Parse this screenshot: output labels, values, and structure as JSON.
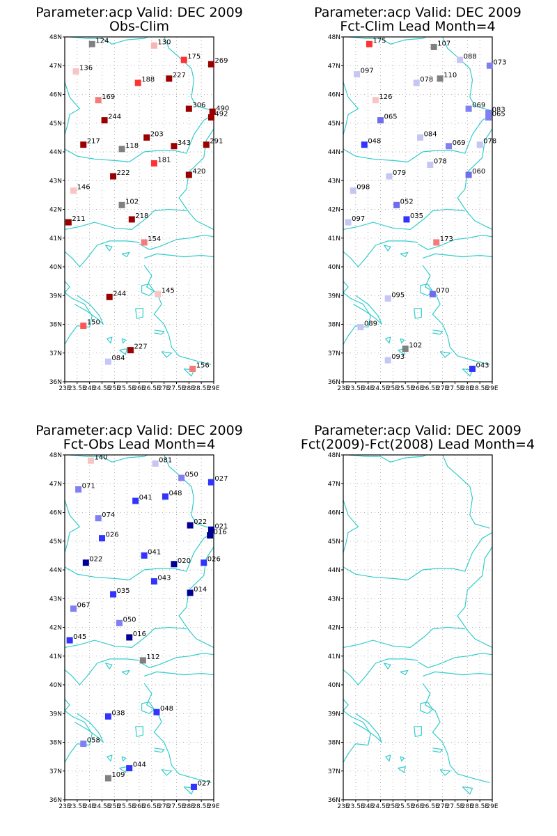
{
  "figure": {
    "panels": [
      {
        "id": "obs-clim",
        "title1": "Parameter:acp Valid: DEC 2009",
        "title2": "Obs-Clim"
      },
      {
        "id": "fct-clim",
        "title1": "Parameter:acp Valid: DEC 2009",
        "title2": "Fct-Clim Lead Month=4"
      },
      {
        "id": "fct-obs",
        "title1": "Parameter:acp Valid: DEC 2009",
        "title2": "Fct-Obs Lead Month=4"
      },
      {
        "id": "fct-diff",
        "title1": "Parameter:acp Valid: DEC 2009",
        "title2": "Fct(2009)-Fct(2008) Lead Month=4"
      }
    ]
  },
  "chart_data": {
    "type": "scatter",
    "x_ticks": [
      "23E",
      "23.5E",
      "24E",
      "24.5E",
      "25E",
      "25.5E",
      "26E",
      "26.5E",
      "27E",
      "27.5E",
      "28E",
      "28.5E",
      "29E"
    ],
    "y_ticks": [
      "36N",
      "37N",
      "38N",
      "39N",
      "40N",
      "41N",
      "42N",
      "43N",
      "44N",
      "45N",
      "46N",
      "47N",
      "48N"
    ],
    "xlim": [
      23,
      29
    ],
    "ylim": [
      36,
      48
    ],
    "grid": true,
    "coastline_color": "#33cccc",
    "panels": [
      {
        "name": "obs-clim",
        "points": [
          {
            "lon": 24.1,
            "lat": 47.75,
            "label": "124",
            "color": "#808080"
          },
          {
            "lon": 26.6,
            "lat": 47.7,
            "label": "130",
            "color": "#f9b4b4"
          },
          {
            "lon": 27.8,
            "lat": 47.2,
            "label": "175",
            "color": "#ff3333"
          },
          {
            "lon": 28.9,
            "lat": 47.05,
            "label": "269",
            "color": "#9b0000"
          },
          {
            "lon": 23.45,
            "lat": 46.8,
            "label": "136",
            "color": "#f9c4c4"
          },
          {
            "lon": 27.2,
            "lat": 46.55,
            "label": "227",
            "color": "#9b0000"
          },
          {
            "lon": 25.95,
            "lat": 46.4,
            "label": "188",
            "color": "#ff3333"
          },
          {
            "lon": 24.35,
            "lat": 45.8,
            "label": "169",
            "color": "#f37b7b"
          },
          {
            "lon": 28.0,
            "lat": 45.5,
            "label": "306",
            "color": "#9b0000"
          },
          {
            "lon": 28.95,
            "lat": 45.4,
            "label": "490",
            "color": "#9b0000"
          },
          {
            "lon": 28.9,
            "lat": 45.2,
            "label": "492",
            "color": "#9b0000"
          },
          {
            "lon": 24.6,
            "lat": 45.1,
            "label": "244",
            "color": "#9b0000"
          },
          {
            "lon": 26.3,
            "lat": 44.5,
            "label": "203",
            "color": "#9b0000"
          },
          {
            "lon": 23.75,
            "lat": 44.25,
            "label": "217",
            "color": "#9b0000"
          },
          {
            "lon": 25.3,
            "lat": 44.1,
            "label": "118",
            "color": "#808080"
          },
          {
            "lon": 27.4,
            "lat": 44.2,
            "label": "343",
            "color": "#9b0000"
          },
          {
            "lon": 28.7,
            "lat": 44.25,
            "label": "291",
            "color": "#9b0000"
          },
          {
            "lon": 26.6,
            "lat": 43.6,
            "label": "181",
            "color": "#ff3333"
          },
          {
            "lon": 28.0,
            "lat": 43.2,
            "label": "420",
            "color": "#9b0000"
          },
          {
            "lon": 24.95,
            "lat": 43.15,
            "label": "222",
            "color": "#9b0000"
          },
          {
            "lon": 23.35,
            "lat": 42.65,
            "label": "146",
            "color": "#f9c4c4"
          },
          {
            "lon": 25.3,
            "lat": 42.15,
            "label": "102",
            "color": "#808080"
          },
          {
            "lon": 25.7,
            "lat": 41.65,
            "label": "218",
            "color": "#9b0000"
          },
          {
            "lon": 23.15,
            "lat": 41.55,
            "label": "211",
            "color": "#9b0000"
          },
          {
            "lon": 26.2,
            "lat": 40.85,
            "label": "154",
            "color": "#f37b7b"
          },
          {
            "lon": 26.75,
            "lat": 39.05,
            "label": "145",
            "color": "#f9c4c4"
          },
          {
            "lon": 24.8,
            "lat": 38.95,
            "label": "244",
            "color": "#9b0000"
          },
          {
            "lon": 23.75,
            "lat": 37.95,
            "label": "150",
            "color": "#ff5555"
          },
          {
            "lon": 25.65,
            "lat": 37.1,
            "label": "227",
            "color": "#9b0000"
          },
          {
            "lon": 24.75,
            "lat": 36.7,
            "label": "084",
            "color": "#c6c6f5"
          },
          {
            "lon": 28.15,
            "lat": 36.45,
            "label": "156",
            "color": "#f37b7b"
          }
        ]
      },
      {
        "name": "fct-clim",
        "points": [
          {
            "lon": 24.05,
            "lat": 47.75,
            "label": "175",
            "color": "#ff3333"
          },
          {
            "lon": 26.65,
            "lat": 47.65,
            "label": "107",
            "color": "#808080"
          },
          {
            "lon": 27.7,
            "lat": 47.2,
            "label": "088",
            "color": "#c6c6f5"
          },
          {
            "lon": 28.9,
            "lat": 47.0,
            "label": "073",
            "color": "#8080f0"
          },
          {
            "lon": 23.55,
            "lat": 46.7,
            "label": "097",
            "color": "#c6c6f5"
          },
          {
            "lon": 26.9,
            "lat": 46.55,
            "label": "110",
            "color": "#808080"
          },
          {
            "lon": 25.95,
            "lat": 46.4,
            "label": "078",
            "color": "#c6c6f5"
          },
          {
            "lon": 24.3,
            "lat": 45.8,
            "label": "126",
            "color": "#f9c4c4"
          },
          {
            "lon": 28.05,
            "lat": 45.5,
            "label": "069",
            "color": "#8080f0"
          },
          {
            "lon": 28.85,
            "lat": 45.35,
            "label": "083",
            "color": "#8080f0"
          },
          {
            "lon": 28.85,
            "lat": 45.2,
            "label": "065",
            "color": "#8080f0"
          },
          {
            "lon": 24.5,
            "lat": 45.1,
            "label": "065",
            "color": "#6d6dee"
          },
          {
            "lon": 26.1,
            "lat": 44.5,
            "label": "084",
            "color": "#c6c6f5"
          },
          {
            "lon": 23.85,
            "lat": 44.25,
            "label": "048",
            "color": "#3333ff"
          },
          {
            "lon": 27.25,
            "lat": 44.2,
            "label": "069",
            "color": "#8080f0"
          },
          {
            "lon": 28.5,
            "lat": 44.25,
            "label": "078",
            "color": "#c6c6f5"
          },
          {
            "lon": 26.5,
            "lat": 43.55,
            "label": "078",
            "color": "#c6c6f5"
          },
          {
            "lon": 28.05,
            "lat": 43.2,
            "label": "060",
            "color": "#6d6dee"
          },
          {
            "lon": 24.85,
            "lat": 43.15,
            "label": "079",
            "color": "#c6c6f5"
          },
          {
            "lon": 23.4,
            "lat": 42.65,
            "label": "098",
            "color": "#c6c6f5"
          },
          {
            "lon": 25.15,
            "lat": 42.15,
            "label": "052",
            "color": "#6d6dee"
          },
          {
            "lon": 25.55,
            "lat": 41.65,
            "label": "035",
            "color": "#3333ff"
          },
          {
            "lon": 23.2,
            "lat": 41.55,
            "label": "097",
            "color": "#c6c6f5"
          },
          {
            "lon": 26.75,
            "lat": 40.85,
            "label": "173",
            "color": "#f37b7b"
          },
          {
            "lon": 26.6,
            "lat": 39.05,
            "label": "070",
            "color": "#6d6dee"
          },
          {
            "lon": 24.8,
            "lat": 38.9,
            "label": "095",
            "color": "#c6c6f5"
          },
          {
            "lon": 23.7,
            "lat": 37.9,
            "label": "089",
            "color": "#c6c6f5"
          },
          {
            "lon": 25.5,
            "lat": 37.15,
            "label": "102",
            "color": "#808080"
          },
          {
            "lon": 24.8,
            "lat": 36.75,
            "label": "093",
            "color": "#c6c6f5"
          },
          {
            "lon": 28.2,
            "lat": 36.45,
            "label": "043",
            "color": "#3333ff"
          }
        ]
      },
      {
        "name": "fct-obs",
        "points": [
          {
            "lon": 24.05,
            "lat": 47.8,
            "label": "140",
            "color": "#f9c4c4"
          },
          {
            "lon": 26.65,
            "lat": 47.7,
            "label": "081",
            "color": "#c6c6f5"
          },
          {
            "lon": 27.7,
            "lat": 47.2,
            "label": "050",
            "color": "#8080f0"
          },
          {
            "lon": 28.9,
            "lat": 47.05,
            "label": "027",
            "color": "#3333ff"
          },
          {
            "lon": 23.55,
            "lat": 46.8,
            "label": "071",
            "color": "#8080f0"
          },
          {
            "lon": 27.05,
            "lat": 46.55,
            "label": "048",
            "color": "#3333ff"
          },
          {
            "lon": 25.85,
            "lat": 46.4,
            "label": "041",
            "color": "#3333ff"
          },
          {
            "lon": 24.35,
            "lat": 45.8,
            "label": "074",
            "color": "#8080f0"
          },
          {
            "lon": 28.05,
            "lat": 45.55,
            "label": "022",
            "color": "#000099"
          },
          {
            "lon": 28.9,
            "lat": 45.4,
            "label": "021",
            "color": "#000099"
          },
          {
            "lon": 28.85,
            "lat": 45.2,
            "label": "016",
            "color": "#000099"
          },
          {
            "lon": 24.5,
            "lat": 45.1,
            "label": "026",
            "color": "#3333ff"
          },
          {
            "lon": 26.2,
            "lat": 44.5,
            "label": "041",
            "color": "#3333ff"
          },
          {
            "lon": 23.85,
            "lat": 44.25,
            "label": "022",
            "color": "#000099"
          },
          {
            "lon": 27.4,
            "lat": 44.2,
            "label": "020",
            "color": "#000099"
          },
          {
            "lon": 28.6,
            "lat": 44.25,
            "label": "026",
            "color": "#3333ff"
          },
          {
            "lon": 26.6,
            "lat": 43.6,
            "label": "043",
            "color": "#3333ff"
          },
          {
            "lon": 28.05,
            "lat": 43.2,
            "label": "014",
            "color": "#000099"
          },
          {
            "lon": 24.95,
            "lat": 43.15,
            "label": "035",
            "color": "#3333ff"
          },
          {
            "lon": 23.35,
            "lat": 42.65,
            "label": "067",
            "color": "#8080f0"
          },
          {
            "lon": 25.2,
            "lat": 42.15,
            "label": "050",
            "color": "#8080f0"
          },
          {
            "lon": 25.6,
            "lat": 41.65,
            "label": "016",
            "color": "#000099"
          },
          {
            "lon": 23.2,
            "lat": 41.55,
            "label": "045",
            "color": "#3333ff"
          },
          {
            "lon": 26.15,
            "lat": 40.85,
            "label": "112",
            "color": "#808080"
          },
          {
            "lon": 26.7,
            "lat": 39.05,
            "label": "048",
            "color": "#3333ff"
          },
          {
            "lon": 24.75,
            "lat": 38.9,
            "label": "038",
            "color": "#3333ff"
          },
          {
            "lon": 23.75,
            "lat": 37.95,
            "label": "058",
            "color": "#8080f0"
          },
          {
            "lon": 25.6,
            "lat": 37.1,
            "label": "044",
            "color": "#3333ff"
          },
          {
            "lon": 24.75,
            "lat": 36.75,
            "label": "109",
            "color": "#808080"
          },
          {
            "lon": 28.2,
            "lat": 36.45,
            "label": "027",
            "color": "#3333ff"
          }
        ]
      },
      {
        "name": "fct-diff",
        "points": []
      }
    ]
  }
}
